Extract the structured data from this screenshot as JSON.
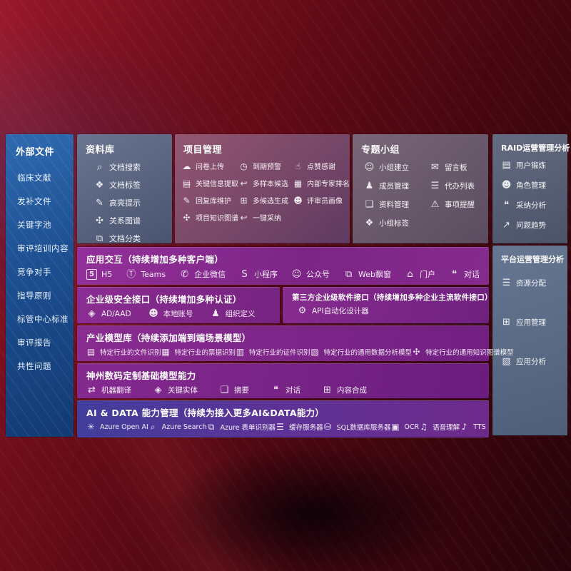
{
  "colors": {
    "background_red": "#6e0d1a",
    "sidebar_blue": "#1c4e90",
    "library_slate": "#5a6c8a",
    "project_mauve": "#7b4d6e",
    "groups_gray_purple": "#6e6078",
    "raid_steel": "#5a6680",
    "platform_steel": "#5d7094",
    "row_purple": "#85298f",
    "row_indigo": "#413e9b",
    "text": "#ffffff"
  },
  "sidebar": {
    "title": "外部文件",
    "items": [
      "临床文献",
      "发补文件",
      "关键字池",
      "审评培训内容",
      "竞争对手",
      "指导原则",
      "标管中心标准",
      "审评报告",
      "共性问题"
    ]
  },
  "panels": {
    "library": {
      "title": "资料库",
      "items": [
        {
          "icon": "doc-search",
          "glyph": "⌕",
          "label": "文档搜索"
        },
        {
          "icon": "doc-tag",
          "glyph": "❖",
          "label": "文档标签"
        },
        {
          "icon": "highlight-pen",
          "glyph": "✎",
          "label": "高亮提示"
        },
        {
          "icon": "relation-graph",
          "glyph": "✣",
          "label": "关系图谱"
        },
        {
          "icon": "doc-classify",
          "glyph": "⧉",
          "label": "文档分类"
        }
      ]
    },
    "project": {
      "title": "项目管理",
      "items": [
        {
          "icon": "cloud-upload",
          "glyph": "☁",
          "label": "问卷上传"
        },
        {
          "icon": "due-alarm",
          "glyph": "◷",
          "label": "到期预警"
        },
        {
          "icon": "thumbs-up",
          "glyph": "☝",
          "label": "点赞感谢"
        },
        {
          "icon": "key-info-extract",
          "glyph": "▤",
          "label": "关键信息提取"
        },
        {
          "icon": "multi-sample",
          "glyph": "↩",
          "label": "多样本候选"
        },
        {
          "icon": "expert-ranking",
          "glyph": "▦",
          "label": "内部专家排名"
        },
        {
          "icon": "reply-library",
          "glyph": "✎",
          "label": "回复库维护"
        },
        {
          "icon": "multi-candidate",
          "glyph": "⊞",
          "label": "多候选生成"
        },
        {
          "icon": "reviewer-profile",
          "glyph": "☻",
          "label": "评审员画像"
        },
        {
          "icon": "project-knowledge-graph",
          "glyph": "✣",
          "label": "项目知识图谱"
        },
        {
          "icon": "one-click-adopt",
          "glyph": "↩",
          "label": "一键采纳"
        }
      ]
    },
    "groups": {
      "title": "专题小组",
      "items": [
        {
          "icon": "group-create",
          "glyph": "☺",
          "label": "小组建立"
        },
        {
          "icon": "message-board",
          "glyph": "✉",
          "label": "留言板"
        },
        {
          "icon": "member-management",
          "glyph": "♟",
          "label": "成员管理"
        },
        {
          "icon": "todo-list",
          "glyph": "☰",
          "label": "代办列表"
        },
        {
          "icon": "material-management",
          "glyph": "❏",
          "label": "资料管理"
        },
        {
          "icon": "reminder-bell",
          "glyph": "⚠",
          "label": "事项提醒"
        },
        {
          "icon": "group-tag",
          "glyph": "❖",
          "label": "小组标签"
        }
      ]
    },
    "raid": {
      "title": "RAID运营管理分析",
      "items": [
        {
          "icon": "user-card",
          "glyph": "▤",
          "label": "用户锻炼"
        },
        {
          "icon": "role-management",
          "glyph": "☻",
          "label": "角色管理"
        },
        {
          "icon": "adoption-analysis",
          "glyph": "❝",
          "label": "采纳分析"
        },
        {
          "icon": "issue-trend",
          "glyph": "↗",
          "label": "问题趋势"
        }
      ]
    },
    "platform": {
      "title": "平台运营管理分析",
      "items": [
        {
          "icon": "resource-allocation",
          "glyph": "☰",
          "label": "资源分配"
        },
        {
          "icon": "app-management",
          "glyph": "⊞",
          "label": "应用管理"
        },
        {
          "icon": "app-analysis",
          "glyph": "▧",
          "label": "应用分析"
        }
      ]
    }
  },
  "rows": {
    "interaction": {
      "title": "应用交互（持续增加多种客户端）",
      "items": [
        {
          "icon": "html5",
          "glyph": "5",
          "label": "H5"
        },
        {
          "icon": "teams",
          "glyph": "Ⓣ",
          "label": "Teams"
        },
        {
          "icon": "wecom",
          "glyph": "✆",
          "label": "企业微信"
        },
        {
          "icon": "miniprogram",
          "glyph": "S",
          "label": "小程序"
        },
        {
          "icon": "official-account",
          "glyph": "☺",
          "label": "公众号"
        },
        {
          "icon": "web-popup",
          "glyph": "⧉",
          "label": "Web飘窗"
        },
        {
          "icon": "portal",
          "glyph": "⌂",
          "label": "门户"
        },
        {
          "icon": "dialog",
          "glyph": "❝",
          "label": "对话"
        }
      ]
    },
    "security": {
      "title": "企业级安全接口（持续增加多种认证）",
      "items": [
        {
          "icon": "azure-ad",
          "glyph": "◈",
          "label": "AD/AAD"
        },
        {
          "icon": "local-account",
          "glyph": "☻",
          "label": "本地账号"
        },
        {
          "icon": "org-definition",
          "glyph": "♟",
          "label": "组织定义"
        }
      ]
    },
    "thirdparty": {
      "title": "第三方企业级软件接口（持续增加多种企业主流软件接口）",
      "items": [
        {
          "icon": "api-designer",
          "glyph": "⚙",
          "label": "API自动化设计器"
        }
      ]
    },
    "industry": {
      "title": "产业模型库（持续添加端到端场景模型）",
      "items": [
        {
          "icon": "file-recognition",
          "glyph": "▤",
          "label": "特定行业的文件识别"
        },
        {
          "icon": "invoice-recognition",
          "glyph": "▦",
          "label": "特定行业的票据识别"
        },
        {
          "icon": "id-recognition",
          "glyph": "▥",
          "label": "特定行业的证件识别"
        },
        {
          "icon": "data-analysis-model",
          "glyph": "▧",
          "label": "特定行业的通用数据分析模型"
        },
        {
          "icon": "knowledge-graph-model",
          "glyph": "✣",
          "label": "特定行业的通用知识图谱模型"
        }
      ]
    },
    "base": {
      "title": "神州数码定制基础模型能力",
      "items": [
        {
          "icon": "machine-translation",
          "glyph": "⇄",
          "label": "机器翻译"
        },
        {
          "icon": "key-entity",
          "glyph": "◈",
          "label": "关键实体"
        },
        {
          "icon": "summary",
          "glyph": "❏",
          "label": "摘要"
        },
        {
          "icon": "dialog",
          "glyph": "❝",
          "label": "对话"
        },
        {
          "icon": "content-synthesis",
          "glyph": "⊞",
          "label": "内容合成"
        }
      ]
    },
    "aidata": {
      "title": "AI & DATA 能力管理（持续为接入更多AI&DATA能力）",
      "items": [
        {
          "icon": "azure-openai",
          "glyph": "✳",
          "label": "Azure Open AI"
        },
        {
          "icon": "azure-search",
          "glyph": "⌕",
          "label": "Azure Search"
        },
        {
          "icon": "azure-form-recognizer",
          "glyph": "⧉",
          "label": "Azure 表单识别器"
        },
        {
          "icon": "cache-server",
          "glyph": "☰",
          "label": "缓存服务器"
        },
        {
          "icon": "sql-db-server",
          "glyph": "⛁",
          "label": "SQL数据库服务器"
        },
        {
          "icon": "ocr",
          "glyph": "▣",
          "label": "OCR"
        },
        {
          "icon": "speech-understanding",
          "glyph": "♫",
          "label": "语音理解"
        },
        {
          "icon": "tts",
          "glyph": "♪",
          "label": "TTS"
        }
      ]
    }
  }
}
